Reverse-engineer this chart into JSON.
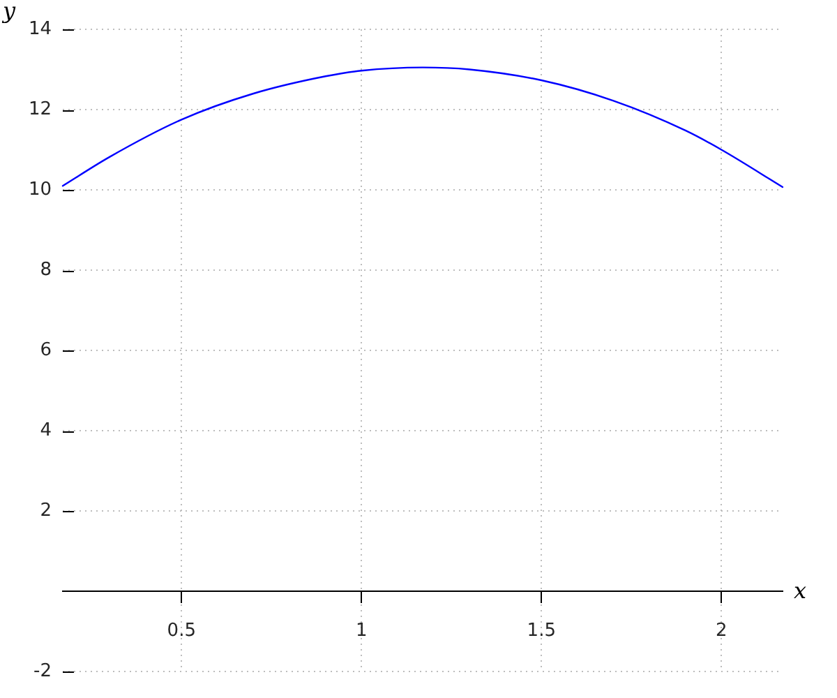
{
  "chart_data": {
    "type": "line",
    "xlabel": "x",
    "ylabel": "y",
    "x": [
      0.17,
      0.3,
      0.5,
      0.7,
      0.9,
      1.0,
      1.17,
      1.3,
      1.5,
      1.7,
      1.9,
      2.0,
      2.17
    ],
    "series": [
      {
        "color": "#0000ff",
        "values": [
          10.1,
          10.82,
          11.75,
          12.4,
          12.83,
          12.97,
          13.05,
          13.0,
          12.73,
          12.22,
          11.48,
          11.0,
          10.07
        ]
      }
    ],
    "xlim": [
      0.17,
      2.17
    ],
    "ylim": [
      -2,
      14
    ],
    "xticks": [
      0.5,
      1,
      1.5,
      2
    ],
    "yticks": [
      -2,
      2,
      4,
      6,
      8,
      10,
      12,
      14
    ],
    "grid": true
  }
}
